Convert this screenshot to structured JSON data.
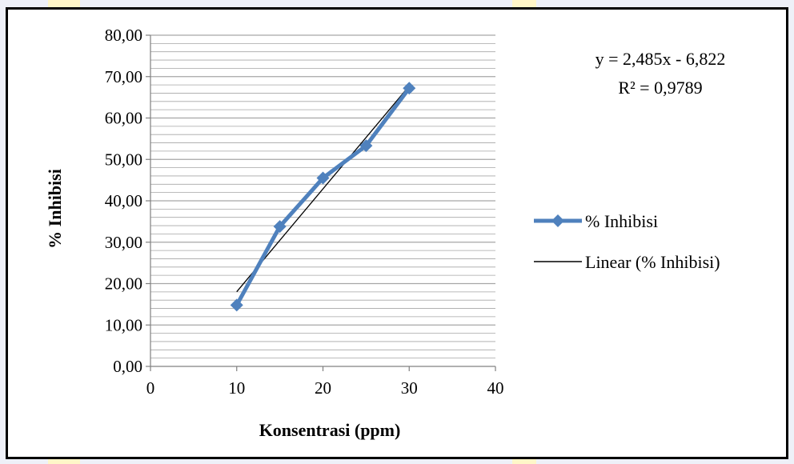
{
  "chart_data": {
    "type": "line",
    "title": "",
    "xlabel": "Konsentrasi (ppm)",
    "ylabel": "% Inhibisi",
    "xlim": [
      0,
      40
    ],
    "ylim": [
      0,
      80
    ],
    "x_ticks": [
      0,
      10,
      20,
      30,
      40
    ],
    "x_tick_labels": [
      "0",
      "10",
      "20",
      "30",
      "40"
    ],
    "y_ticks": [
      0,
      10,
      20,
      30,
      40,
      50,
      60,
      70,
      80
    ],
    "y_tick_labels": [
      "0,00",
      "10,00",
      "20,00",
      "30,00",
      "40,00",
      "50,00",
      "60,00",
      "70,00",
      "80,00"
    ],
    "y_minor_step": 2,
    "grid": true,
    "legend_position": "right",
    "series": [
      {
        "name": "% Inhibisi",
        "marker": "diamond",
        "color": "#4f81bd",
        "x": [
          10,
          15,
          20,
          25,
          30
        ],
        "y": [
          14.8,
          33.8,
          45.5,
          53.3,
          67.2
        ]
      }
    ],
    "trendline": {
      "name": "Linear (% Inhibisi)",
      "type": "linear",
      "slope": 2.485,
      "intercept": -6.822,
      "x_range": [
        10,
        30
      ],
      "color": "#000000"
    },
    "annotations": {
      "equation": "y = 2,485x - 6,822",
      "r_squared": "R² = 0,9789"
    }
  },
  "colors": {
    "frame_border": "#000000",
    "grid": "#a6a6a6",
    "series": "#4f81bd",
    "trendline": "#000000",
    "backdrop": "#eef0f8",
    "backdrop_accent": "#f5e6a6"
  }
}
